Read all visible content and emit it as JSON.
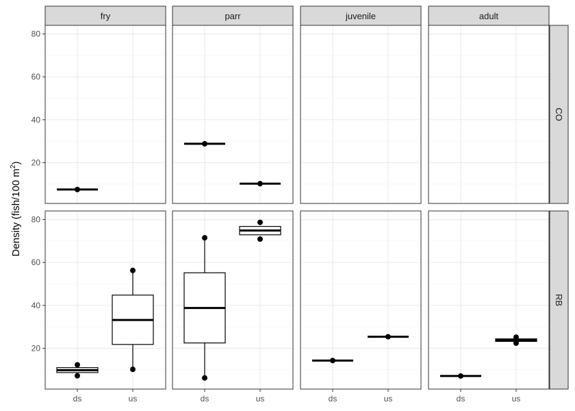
{
  "chart_data": {
    "type": "boxplot",
    "ylabel": "Density (fish/100 m²)",
    "ylabel_parts": {
      "main": "Density (fish/100 m",
      "superscript": "2",
      "close": ")"
    },
    "columns": [
      "fry",
      "parr",
      "juvenile",
      "adult"
    ],
    "rows": [
      "CO",
      "RB"
    ],
    "categories": [
      "ds",
      "us"
    ],
    "y_ticks": [
      20,
      40,
      60,
      80
    ],
    "ylim": [
      1,
      84
    ],
    "grid": true,
    "legend": "none",
    "boxes": [
      {
        "column": "fry",
        "row": "CO",
        "category": "ds",
        "min": 7.5,
        "q1": 7.5,
        "median": 7.5,
        "q3": 7.5,
        "max": 7.5,
        "outliers": [
          7.5
        ]
      },
      {
        "column": "parr",
        "row": "CO",
        "category": "ds",
        "min": 28.8,
        "q1": 28.8,
        "median": 28.8,
        "q3": 28.8,
        "max": 28.8,
        "outliers": [
          28.8
        ]
      },
      {
        "column": "parr",
        "row": "CO",
        "category": "us",
        "min": 10.2,
        "q1": 10.2,
        "median": 10.2,
        "q3": 10.2,
        "max": 10.2,
        "outliers": [
          10.2
        ]
      },
      {
        "column": "fry",
        "row": "RB",
        "category": "ds",
        "min": 8.7,
        "q1": 8.7,
        "median": 9.8,
        "q3": 11.0,
        "max": 11.0,
        "outliers": [
          12.3,
          7.2
        ]
      },
      {
        "column": "fry",
        "row": "RB",
        "category": "us",
        "min": 10.2,
        "q1": 21.8,
        "median": 33.2,
        "q3": 44.8,
        "max": 56.3,
        "outliers": [
          56.3,
          10.2
        ]
      },
      {
        "column": "parr",
        "row": "RB",
        "category": "ds",
        "min": 6.2,
        "q1": 22.5,
        "median": 38.8,
        "q3": 55.2,
        "max": 71.5,
        "outliers": [
          71.5,
          6.2
        ]
      },
      {
        "column": "parr",
        "row": "RB",
        "category": "us",
        "min": 72.9,
        "q1": 72.9,
        "median": 74.9,
        "q3": 76.8,
        "max": 76.8,
        "outliers": [
          78.7,
          70.9
        ]
      },
      {
        "column": "juvenile",
        "row": "RB",
        "category": "ds",
        "min": 14.3,
        "q1": 14.3,
        "median": 14.3,
        "q3": 14.3,
        "max": 14.3,
        "outliers": [
          14.3
        ]
      },
      {
        "column": "juvenile",
        "row": "RB",
        "category": "us",
        "min": 25.4,
        "q1": 25.4,
        "median": 25.4,
        "q3": 25.4,
        "max": 25.4,
        "outliers": [
          25.4
        ]
      },
      {
        "column": "adult",
        "row": "RB",
        "category": "ds",
        "min": 7.1,
        "q1": 7.1,
        "median": 7.1,
        "q3": 7.1,
        "max": 7.1,
        "outliers": [
          7.1
        ]
      },
      {
        "column": "adult",
        "row": "RB",
        "category": "us",
        "min": 23.2,
        "q1": 23.2,
        "median": 23.8,
        "q3": 24.4,
        "max": 24.4,
        "outliers": [
          25.2,
          22.4
        ]
      }
    ]
  }
}
